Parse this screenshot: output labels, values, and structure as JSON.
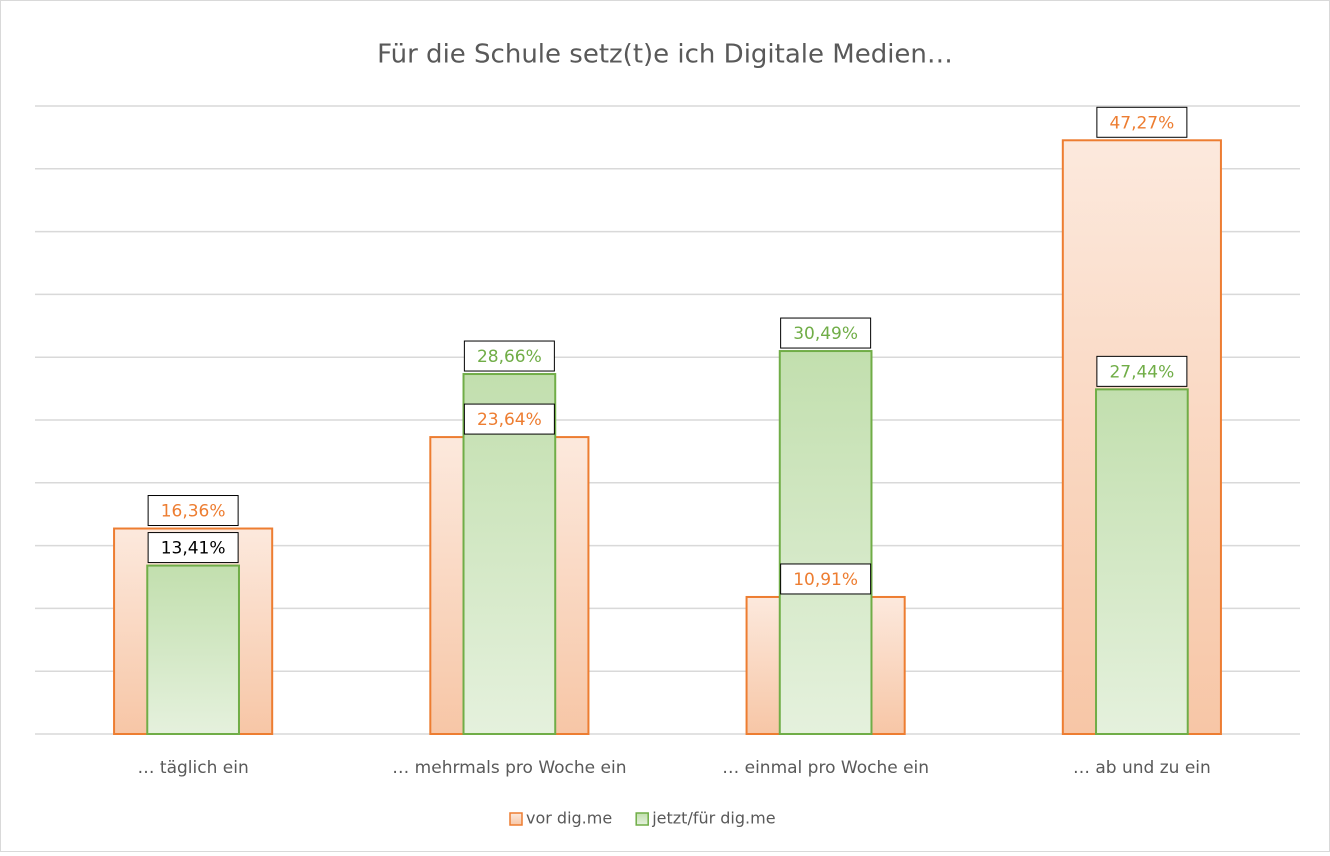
{
  "chart_data": {
    "type": "bar",
    "title": "Für die Schule setz(t)e ich Digitale Medien…",
    "categories": [
      "… täglich ein",
      "… mehrmals pro Woche ein",
      "… einmal pro Woche ein",
      "… ab und zu ein"
    ],
    "series": [
      {
        "name": "vor dig.me",
        "color": "#ed7d31",
        "values": [
          16.36,
          23.64,
          10.91,
          47.27
        ],
        "value_labels": [
          "16,36%",
          "23,64%",
          "10,91%",
          "47,27%"
        ]
      },
      {
        "name": "jetzt/für dig.me",
        "color": "#70ad47",
        "values": [
          13.41,
          28.66,
          30.49,
          27.44
        ],
        "value_labels": [
          "13,41%",
          "28,66%",
          "30,49%",
          "27,44%"
        ],
        "value_label_colors": [
          "#000000",
          "#70ad47",
          "#70ad47",
          "#70ad47"
        ]
      }
    ],
    "ylim": [
      0,
      50
    ],
    "yticks": [
      0,
      5,
      10,
      15,
      20,
      25,
      30,
      35,
      40,
      45,
      50
    ],
    "show_tick_labels": false,
    "grid": true,
    "overlap": true,
    "legend": "bottom"
  }
}
